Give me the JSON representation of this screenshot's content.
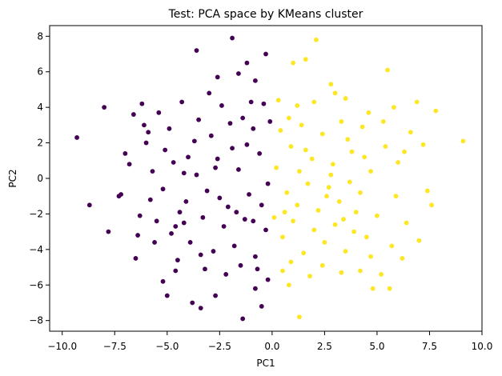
{
  "chart_data": {
    "type": "scatter",
    "title": "Test: PCA space by KMeans cluster",
    "xlabel": "PC1",
    "ylabel": "PC2",
    "xlim": [
      -10.6,
      10.0
    ],
    "ylim": [
      -8.6,
      8.6
    ],
    "x_ticks": [
      -10.0,
      -7.5,
      -5.0,
      -2.5,
      0.0,
      2.5,
      5.0,
      7.5,
      10.0
    ],
    "x_tick_labels": [
      "−10.0",
      "−7.5",
      "−5.0",
      "−2.5",
      "0.0",
      "2.5",
      "5.0",
      "7.5",
      "10.0"
    ],
    "y_ticks": [
      -8,
      -6,
      -4,
      -2,
      0,
      2,
      4,
      6,
      8
    ],
    "y_tick_labels": [
      "−8",
      "−6",
      "−4",
      "−2",
      "0",
      "2",
      "4",
      "6",
      "8"
    ],
    "grid": false,
    "legend": "none",
    "series": [
      {
        "color": "#440154",
        "points": [
          [
            -9.3,
            2.3
          ],
          [
            -8.0,
            4.0
          ],
          [
            -7.8,
            -3.0
          ],
          [
            -8.7,
            -1.5
          ],
          [
            -7.3,
            -1.0
          ],
          [
            -7.2,
            -0.9
          ],
          [
            -7.0,
            1.4
          ],
          [
            -6.6,
            3.6
          ],
          [
            -6.5,
            -4.5
          ],
          [
            -6.2,
            4.2
          ],
          [
            -6.1,
            3.0
          ],
          [
            -6.0,
            2.0
          ],
          [
            -5.8,
            -1.2
          ],
          [
            -5.6,
            -3.6
          ],
          [
            -5.2,
            -5.8
          ],
          [
            -5.0,
            -6.6
          ],
          [
            -4.6,
            -5.2
          ],
          [
            -4.2,
            -2.5
          ],
          [
            -3.8,
            -7.0
          ],
          [
            -3.6,
            7.2
          ],
          [
            -3.4,
            -7.3
          ],
          [
            -2.7,
            -6.6
          ],
          [
            -2.6,
            5.7
          ],
          [
            -1.9,
            7.9
          ],
          [
            -1.6,
            5.9
          ],
          [
            -1.4,
            -7.9
          ],
          [
            -1.2,
            6.5
          ],
          [
            -0.8,
            5.5
          ],
          [
            -0.3,
            7.0
          ],
          [
            -0.5,
            -7.2
          ],
          [
            -0.8,
            -6.2
          ],
          [
            -0.2,
            -5.7
          ],
          [
            -5.4,
            3.7
          ],
          [
            -4.9,
            2.8
          ],
          [
            -4.3,
            4.3
          ],
          [
            -4.0,
            1.2
          ],
          [
            -3.5,
            3.3
          ],
          [
            -2.9,
            2.4
          ],
          [
            -2.4,
            4.1
          ],
          [
            -1.9,
            1.7
          ],
          [
            -1.4,
            3.4
          ],
          [
            -0.9,
            2.8
          ],
          [
            -0.4,
            4.2
          ],
          [
            -5.7,
            0.4
          ],
          [
            -5.2,
            -0.6
          ],
          [
            -4.7,
            0.9
          ],
          [
            -4.1,
            -1.3
          ],
          [
            -3.6,
            0.2
          ],
          [
            -3.1,
            -0.7
          ],
          [
            -2.6,
            1.1
          ],
          [
            -2.1,
            -1.6
          ],
          [
            -1.6,
            0.5
          ],
          [
            -1.1,
            -0.9
          ],
          [
            -0.6,
            1.4
          ],
          [
            -0.2,
            -0.3
          ],
          [
            -5.5,
            -2.4
          ],
          [
            -4.8,
            -3.1
          ],
          [
            -4.4,
            -1.9
          ],
          [
            -3.9,
            -3.6
          ],
          [
            -3.3,
            -2.2
          ],
          [
            -2.8,
            -4.1
          ],
          [
            -2.3,
            -2.7
          ],
          [
            -1.8,
            -3.8
          ],
          [
            -1.3,
            -2.3
          ],
          [
            -0.8,
            -4.4
          ],
          [
            -0.3,
            -2.9
          ],
          [
            -6.3,
            -2.1
          ],
          [
            -6.8,
            0.8
          ],
          [
            -6.4,
            -3.2
          ],
          [
            -5.9,
            2.6
          ],
          [
            -4.5,
            -4.6
          ],
          [
            -3.2,
            -5.1
          ],
          [
            -2.2,
            -5.4
          ],
          [
            -1.5,
            -4.9
          ],
          [
            -0.7,
            -5.1
          ],
          [
            -2.0,
            3.1
          ],
          [
            -1.0,
            4.3
          ],
          [
            -3.0,
            4.8
          ],
          [
            -3.7,
            2.1
          ],
          [
            -2.5,
            -1.1
          ],
          [
            -1.7,
            -1.9
          ],
          [
            -0.5,
            -1.5
          ],
          [
            -4.2,
            0.3
          ],
          [
            -2.7,
            0.6
          ],
          [
            -1.2,
            1.9
          ],
          [
            -0.9,
            -2.4
          ],
          [
            -3.4,
            -4.3
          ],
          [
            -4.6,
            -2.7
          ],
          [
            -5.1,
            1.6
          ],
          [
            -0.1,
            3.2
          ]
        ]
      },
      {
        "color": "#fde725",
        "points": [
          [
            9.1,
            2.1
          ],
          [
            7.8,
            3.8
          ],
          [
            7.6,
            -1.5
          ],
          [
            7.4,
            -0.7
          ],
          [
            7.2,
            1.9
          ],
          [
            7.0,
            -3.5
          ],
          [
            6.9,
            4.3
          ],
          [
            6.6,
            2.6
          ],
          [
            6.4,
            -2.5
          ],
          [
            6.2,
            -4.5
          ],
          [
            6.0,
            0.9
          ],
          [
            5.8,
            4.0
          ],
          [
            5.6,
            -6.2
          ],
          [
            5.5,
            6.1
          ],
          [
            5.2,
            -5.4
          ],
          [
            4.8,
            -6.2
          ],
          [
            4.6,
            3.7
          ],
          [
            4.2,
            -5.2
          ],
          [
            3.9,
            -3.0
          ],
          [
            3.5,
            4.5
          ],
          [
            2.8,
            5.3
          ],
          [
            2.1,
            7.8
          ],
          [
            1.6,
            6.7
          ],
          [
            1.3,
            -7.8
          ],
          [
            1.0,
            6.5
          ],
          [
            0.8,
            -6.0
          ],
          [
            0.3,
            4.4
          ],
          [
            0.5,
            -5.2
          ],
          [
            4.3,
            2.9
          ],
          [
            3.8,
            1.5
          ],
          [
            3.3,
            3.2
          ],
          [
            2.9,
            0.8
          ],
          [
            2.4,
            2.5
          ],
          [
            1.9,
            1.1
          ],
          [
            1.4,
            3.0
          ],
          [
            0.9,
            1.8
          ],
          [
            0.4,
            2.7
          ],
          [
            4.7,
            0.4
          ],
          [
            4.2,
            -0.8
          ],
          [
            3.7,
            -0.2
          ],
          [
            3.2,
            -1.3
          ],
          [
            2.7,
            -0.5
          ],
          [
            2.2,
            -1.8
          ],
          [
            1.7,
            -0.3
          ],
          [
            1.2,
            -1.5
          ],
          [
            0.7,
            -0.8
          ],
          [
            0.2,
            0.6
          ],
          [
            5.0,
            -2.1
          ],
          [
            4.5,
            -3.3
          ],
          [
            4.0,
            -1.9
          ],
          [
            3.5,
            -4.1
          ],
          [
            3.0,
            -2.6
          ],
          [
            2.5,
            -3.6
          ],
          [
            2.0,
            -2.9
          ],
          [
            1.5,
            -4.2
          ],
          [
            1.0,
            -2.4
          ],
          [
            0.5,
            -3.3
          ],
          [
            5.9,
            -1.0
          ],
          [
            6.3,
            1.5
          ],
          [
            5.3,
            3.2
          ],
          [
            5.7,
            -3.8
          ],
          [
            3.3,
            -5.3
          ],
          [
            2.4,
            -4.9
          ],
          [
            1.8,
            -5.5
          ],
          [
            0.9,
            -4.7
          ],
          [
            2.0,
            4.3
          ],
          [
            1.2,
            4.1
          ],
          [
            3.0,
            4.8
          ],
          [
            3.6,
            2.2
          ],
          [
            2.6,
            -1.0
          ],
          [
            1.6,
            1.6
          ],
          [
            0.6,
            -1.9
          ],
          [
            4.4,
            1.2
          ],
          [
            2.8,
            0.2
          ],
          [
            1.3,
            0.4
          ],
          [
            0.8,
            3.4
          ],
          [
            3.4,
            -2.3
          ],
          [
            4.7,
            -4.4
          ],
          [
            5.4,
            1.8
          ],
          [
            0.1,
            -2.2
          ]
        ]
      }
    ]
  }
}
